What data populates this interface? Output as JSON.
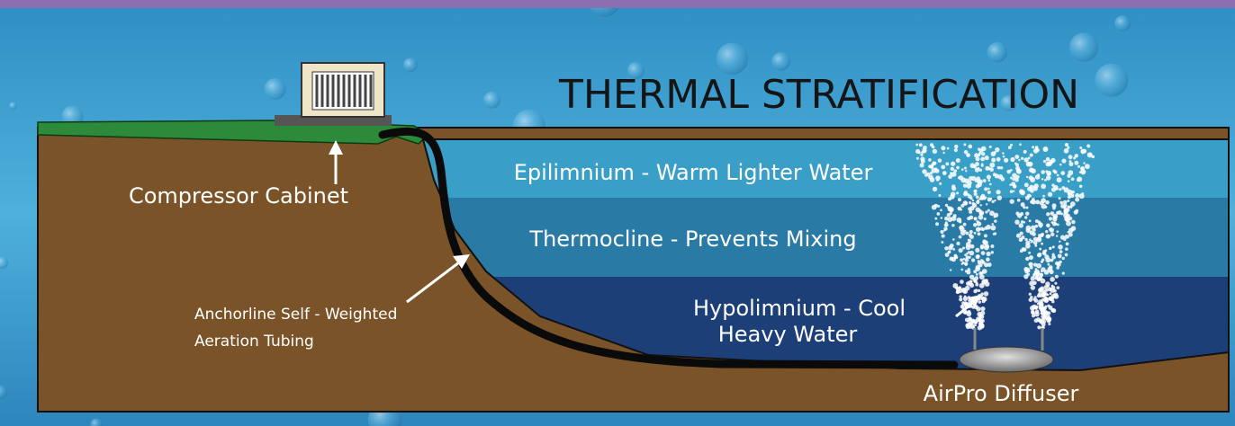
{
  "title": "THERMAL STRATIFICATION",
  "labels": {
    "compressor": "Compressor Cabinet",
    "tubing": [
      "Anchorline Self - Weighted",
      "Aeration Tubing"
    ],
    "epilimnium": "Epilimnium - Warm Lighter Water",
    "thermocline": "Thermocline - Prevents Mixing",
    "hypolimnium": [
      "Hypolimnium - Cool",
      "Heavy Water"
    ],
    "diffuser": "AirPro Diffuser"
  }
}
